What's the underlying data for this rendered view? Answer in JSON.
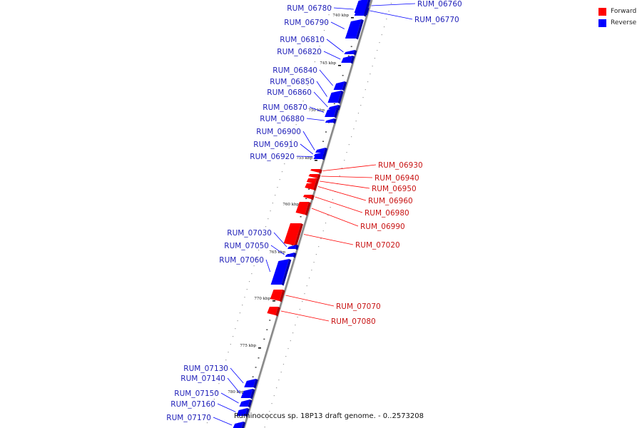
{
  "caption": "Ruminococcus sp. 18P13 draft genome. - 0..2573208",
  "legend": [
    {
      "label": "Forward",
      "color": "#ff0000"
    },
    {
      "label": "Reverse",
      "color": "#0000ff"
    }
  ],
  "colors": {
    "forward": "#ff0000",
    "reverse": "#0000ff",
    "forward_label": "#c81414",
    "reverse_label": "#1f1fb8",
    "backbone": "#888888"
  },
  "scale": [
    {
      "label": "740 kbp",
      "kbp": 740
    },
    {
      "label": "745 kbp",
      "kbp": 745
    },
    {
      "label": "750 kbp",
      "kbp": 750
    },
    {
      "label": "755 kbp",
      "kbp": 755
    },
    {
      "label": "760 kbp",
      "kbp": 760
    },
    {
      "label": "765 kbp",
      "kbp": 765
    },
    {
      "label": "770 kbp",
      "kbp": 770
    },
    {
      "label": "775 kbp",
      "kbp": 775
    },
    {
      "label": "780 kbp",
      "kbp": 780
    }
  ],
  "genes": [
    {
      "id": "RUM_06760",
      "strand": "reverse"
    },
    {
      "id": "RUM_06770",
      "strand": "reverse"
    },
    {
      "id": "RUM_06780",
      "strand": "reverse"
    },
    {
      "id": "RUM_06790",
      "strand": "reverse"
    },
    {
      "id": "RUM_06810",
      "strand": "reverse"
    },
    {
      "id": "RUM_06820",
      "strand": "reverse"
    },
    {
      "id": "RUM_06840",
      "strand": "reverse"
    },
    {
      "id": "RUM_06850",
      "strand": "reverse"
    },
    {
      "id": "RUM_06860",
      "strand": "reverse"
    },
    {
      "id": "RUM_06870",
      "strand": "reverse"
    },
    {
      "id": "RUM_06880",
      "strand": "reverse"
    },
    {
      "id": "RUM_06900",
      "strand": "reverse"
    },
    {
      "id": "RUM_06910",
      "strand": "reverse"
    },
    {
      "id": "RUM_06920",
      "strand": "reverse"
    },
    {
      "id": "RUM_06930",
      "strand": "forward"
    },
    {
      "id": "RUM_06940",
      "strand": "forward"
    },
    {
      "id": "RUM_06950",
      "strand": "forward"
    },
    {
      "id": "RUM_06960",
      "strand": "forward"
    },
    {
      "id": "RUM_06980",
      "strand": "forward"
    },
    {
      "id": "RUM_06990",
      "strand": "forward"
    },
    {
      "id": "RUM_07020",
      "strand": "forward"
    },
    {
      "id": "RUM_07030",
      "strand": "reverse"
    },
    {
      "id": "RUM_07050",
      "strand": "reverse"
    },
    {
      "id": "RUM_07060",
      "strand": "reverse"
    },
    {
      "id": "RUM_07070",
      "strand": "forward"
    },
    {
      "id": "RUM_07080",
      "strand": "forward"
    },
    {
      "id": "RUM_07130",
      "strand": "reverse"
    },
    {
      "id": "RUM_07140",
      "strand": "reverse"
    },
    {
      "id": "RUM_07150",
      "strand": "reverse"
    },
    {
      "id": "RUM_07160",
      "strand": "reverse"
    },
    {
      "id": "RUM_07170",
      "strand": "reverse"
    }
  ]
}
